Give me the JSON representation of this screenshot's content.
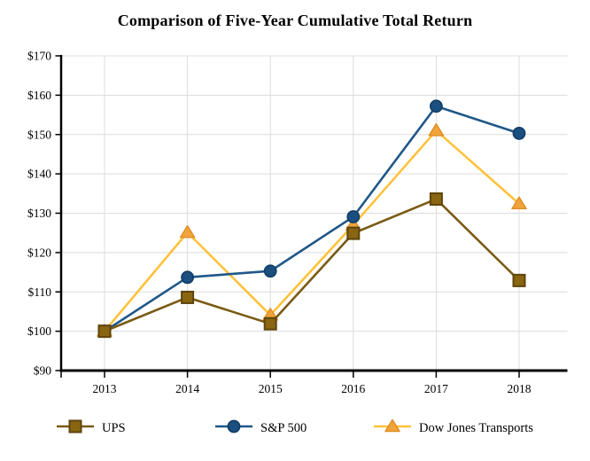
{
  "chart_data": {
    "type": "line",
    "title": "Comparison of Five-Year Cumulative Total Return",
    "x_labels": [
      "2013",
      "2014",
      "2015",
      "2016",
      "2017",
      "2018"
    ],
    "y_ticks": [
      "$90",
      "$100",
      "$110",
      "$120",
      "$130",
      "$140",
      "$150",
      "$160",
      "$170"
    ],
    "ylim": [
      90,
      170
    ],
    "y_step": 10,
    "grid": true,
    "legend_position": "bottom",
    "axis_color": "#000000",
    "grid_color": "#DCDCDC",
    "series": [
      {
        "name": "UPS",
        "marker": "square",
        "line_color": "#7A5A14",
        "marker_fill": "#8A6512",
        "marker_stroke": "#5E450B",
        "values": [
          100.0,
          108.6,
          101.9,
          124.9,
          133.6,
          112.9
        ]
      },
      {
        "name": "S&P 500",
        "marker": "circle",
        "line_color": "#1F5788",
        "marker_fill": "#1A4F80",
        "marker_stroke": "#123C64",
        "values": [
          100.0,
          113.7,
          115.3,
          129.1,
          157.2,
          150.3
        ]
      },
      {
        "name": "Dow Jones Transports",
        "marker": "triangle",
        "line_color": "#FFC23B",
        "marker_fill": "#F2A43C",
        "marker_stroke": "#DD8F26",
        "values": [
          100.0,
          125.1,
          104.1,
          127.0,
          151.0,
          132.4
        ]
      }
    ]
  }
}
